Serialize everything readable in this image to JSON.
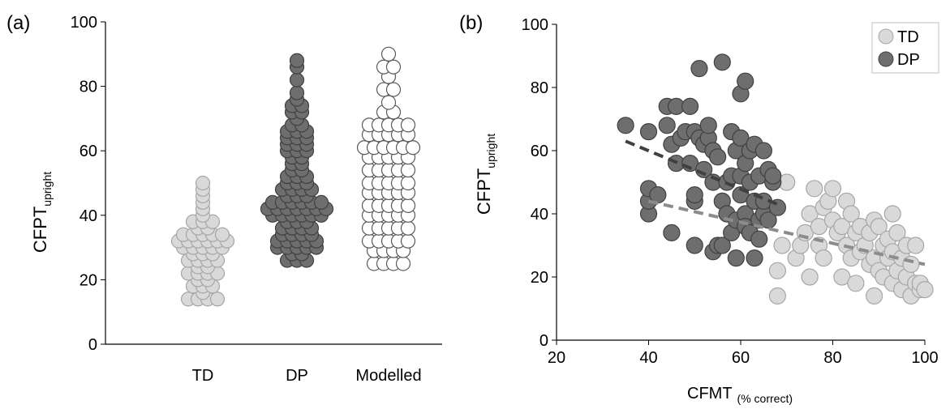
{
  "colors": {
    "td_fill": "#d9d9d9",
    "td_stroke": "#a6a6a6",
    "dp_fill": "#6e6e6e",
    "dp_stroke": "#404040",
    "mod_fill": "#ffffff",
    "mod_stroke": "#595959",
    "axis": "#000000"
  },
  "chart_data": [
    {
      "type": "scatter",
      "panel_label": "(a)",
      "ylabel_main": "CFPT",
      "ylabel_sub": "upright",
      "ylim": [
        0,
        100
      ],
      "yticks": [
        0,
        20,
        40,
        60,
        80,
        100
      ],
      "categories": [
        "TD",
        "DP",
        "Modelled"
      ],
      "grid": false,
      "series": [
        {
          "name": "TD",
          "values": [
            14,
            14,
            14,
            14,
            16,
            18,
            18,
            18,
            20,
            20,
            22,
            22,
            22,
            22,
            24,
            24,
            26,
            26,
            26,
            26,
            28,
            28,
            28,
            30,
            30,
            30,
            30,
            30,
            32,
            32,
            32,
            32,
            32,
            32,
            34,
            34,
            34,
            34,
            34,
            36,
            36,
            38,
            38,
            38,
            40,
            42,
            44,
            46,
            48,
            50
          ]
        },
        {
          "name": "DP",
          "values": [
            26,
            26,
            26,
            28,
            28,
            30,
            30,
            30,
            30,
            30,
            32,
            32,
            32,
            32,
            32,
            34,
            34,
            34,
            34,
            36,
            36,
            36,
            36,
            38,
            38,
            38,
            40,
            40,
            40,
            40,
            40,
            40,
            42,
            42,
            42,
            42,
            42,
            42,
            42,
            44,
            44,
            44,
            44,
            44,
            44,
            46,
            46,
            46,
            48,
            48,
            48,
            48,
            50,
            50,
            50,
            52,
            52,
            52,
            54,
            54,
            56,
            56,
            58,
            58,
            60,
            60,
            60,
            62,
            62,
            62,
            64,
            64,
            64,
            66,
            66,
            66,
            68,
            68,
            70,
            72,
            72,
            74,
            74,
            76,
            78,
            82,
            86,
            88
          ]
        },
        {
          "name": "Modelled",
          "values": [
            25,
            25,
            25,
            25,
            29,
            29,
            29,
            29,
            32,
            32,
            32,
            32,
            32,
            36,
            36,
            36,
            36,
            36,
            40,
            40,
            40,
            40,
            40,
            43,
            43,
            43,
            43,
            43,
            47,
            47,
            47,
            47,
            47,
            50,
            50,
            50,
            50,
            50,
            54,
            54,
            54,
            54,
            54,
            58,
            58,
            58,
            58,
            58,
            61,
            61,
            61,
            61,
            61,
            61,
            65,
            65,
            65,
            65,
            65,
            68,
            68,
            68,
            68,
            68,
            72,
            72,
            75,
            79,
            79,
            83,
            86,
            86,
            90
          ]
        }
      ]
    },
    {
      "type": "scatter",
      "panel_label": "(b)",
      "xlabel_main": "CFMT",
      "xlabel_sub": "(% correct)",
      "ylabel_main": "CFPT",
      "ylabel_sub": "upright",
      "xlim": [
        20,
        100
      ],
      "xticks": [
        20,
        40,
        60,
        80,
        100
      ],
      "ylim": [
        0,
        100
      ],
      "yticks": [
        0,
        20,
        40,
        60,
        80,
        100
      ],
      "grid": false,
      "legend_position": "top-right",
      "legend": [
        "TD",
        "DP"
      ],
      "series": [
        {
          "name": "TD",
          "points": [
            [
              68,
              14
            ],
            [
              68,
              22
            ],
            [
              69,
              30
            ],
            [
              70,
              50
            ],
            [
              72,
              26
            ],
            [
              73,
              30
            ],
            [
              74,
              34
            ],
            [
              75,
              40
            ],
            [
              75,
              20
            ],
            [
              76,
              48
            ],
            [
              77,
              36
            ],
            [
              77,
              30
            ],
            [
              78,
              42
            ],
            [
              78,
              26
            ],
            [
              79,
              44
            ],
            [
              80,
              38
            ],
            [
              80,
              48
            ],
            [
              81,
              34
            ],
            [
              82,
              36
            ],
            [
              82,
              20
            ],
            [
              83,
              30
            ],
            [
              83,
              44
            ],
            [
              84,
              40
            ],
            [
              84,
              26
            ],
            [
              85,
              18
            ],
            [
              85,
              34
            ],
            [
              86,
              28
            ],
            [
              86,
              36
            ],
            [
              87,
              30
            ],
            [
              88,
              24
            ],
            [
              88,
              34
            ],
            [
              89,
              14
            ],
            [
              89,
              38
            ],
            [
              89,
              26
            ],
            [
              90,
              36
            ],
            [
              90,
              22
            ],
            [
              91,
              30
            ],
            [
              91,
              20
            ],
            [
              92,
              32
            ],
            [
              92,
              26
            ],
            [
              93,
              28
            ],
            [
              93,
              40
            ],
            [
              93,
              18
            ],
            [
              94,
              22
            ],
            [
              94,
              34
            ],
            [
              95,
              16
            ],
            [
              95,
              26
            ],
            [
              96,
              20
            ],
            [
              96,
              30
            ],
            [
              97,
              14
            ],
            [
              97,
              24
            ],
            [
              98,
              18
            ],
            [
              98,
              30
            ],
            [
              99,
              16
            ],
            [
              99,
              18
            ],
            [
              100,
              16
            ]
          ],
          "trend": [
            [
              40,
              44
            ],
            [
              100,
              24
            ]
          ]
        },
        {
          "name": "DP",
          "points": [
            [
              35,
              68
            ],
            [
              40,
              40
            ],
            [
              40,
              44
            ],
            [
              40,
              48
            ],
            [
              40,
              66
            ],
            [
              42,
              46
            ],
            [
              44,
              74
            ],
            [
              44,
              68
            ],
            [
              45,
              34
            ],
            [
              45,
              62
            ],
            [
              46,
              74
            ],
            [
              46,
              56
            ],
            [
              47,
              64
            ],
            [
              48,
              66
            ],
            [
              49,
              74
            ],
            [
              49,
              56
            ],
            [
              50,
              44
            ],
            [
              50,
              30
            ],
            [
              50,
              46
            ],
            [
              50,
              66
            ],
            [
              51,
              86
            ],
            [
              51,
              64
            ],
            [
              52,
              54
            ],
            [
              52,
              62
            ],
            [
              53,
              64
            ],
            [
              53,
              68
            ],
            [
              54,
              28
            ],
            [
              54,
              50
            ],
            [
              54,
              60
            ],
            [
              55,
              58
            ],
            [
              55,
              30
            ],
            [
              56,
              88
            ],
            [
              56,
              44
            ],
            [
              56,
              30
            ],
            [
              57,
              40
            ],
            [
              57,
              50
            ],
            [
              58,
              34
            ],
            [
              58,
              52
            ],
            [
              58,
              66
            ],
            [
              59,
              38
            ],
            [
              59,
              26
            ],
            [
              59,
              60
            ],
            [
              60,
              46
            ],
            [
              60,
              52
            ],
            [
              60,
              78
            ],
            [
              60,
              64
            ],
            [
              61,
              82
            ],
            [
              61,
              40
            ],
            [
              61,
              36
            ],
            [
              61,
              56
            ],
            [
              62,
              34
            ],
            [
              62,
              50
            ],
            [
              62,
              60
            ],
            [
              63,
              26
            ],
            [
              63,
              44
            ],
            [
              63,
              62
            ],
            [
              64,
              38
            ],
            [
              64,
              32
            ],
            [
              64,
              52
            ],
            [
              65,
              40
            ],
            [
              65,
              44
            ],
            [
              65,
              60
            ],
            [
              66,
              54
            ],
            [
              66,
              38
            ],
            [
              67,
              50
            ],
            [
              67,
              52
            ],
            [
              68,
              42
            ]
          ],
          "trend": [
            [
              35,
              63
            ],
            [
              68,
              43
            ]
          ]
        }
      ]
    }
  ]
}
